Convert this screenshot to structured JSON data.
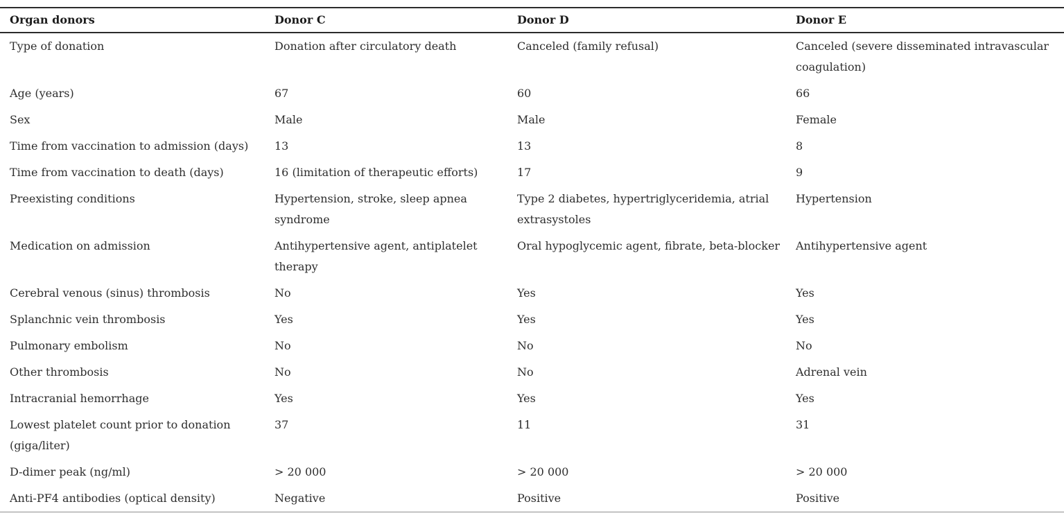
{
  "style": {
    "text_color": "#2e2e2e",
    "header_text_color": "#1c1c1c",
    "heavy_rule_color": "#2b2b2b",
    "light_rule_color": "#8f8f8f",
    "background_color": "#ffffff"
  },
  "table": {
    "columns": [
      "Organ donors",
      "Donor C",
      "Donor D",
      "Donor E"
    ],
    "rows": [
      {
        "label": "Type of donation",
        "values": [
          "Donation after circulatory death",
          "Canceled (family refusal)",
          "Canceled (severe disseminated intravascular coagulation)"
        ]
      },
      {
        "label": "Age (years)",
        "values": [
          "67",
          "60",
          "66"
        ]
      },
      {
        "label": "Sex",
        "values": [
          "Male",
          "Male",
          "Female"
        ]
      },
      {
        "label": "Time from vaccination to admission (days)",
        "values": [
          "13",
          "13",
          "8"
        ]
      },
      {
        "label": "Time from vaccination to death (days)",
        "values": [
          "16 (limitation of therapeutic efforts)",
          "17",
          "9"
        ]
      },
      {
        "label": "Preexisting conditions",
        "values": [
          "Hypertension, stroke, sleep apnea syndrome",
          "Type 2 diabetes, hypertriglyceridemia, atrial extrasystoles",
          "Hypertension"
        ]
      },
      {
        "label": "Medication on admission",
        "values": [
          "Antihypertensive agent, antiplatelet therapy",
          "Oral hypoglycemic agent, fibrate, beta-blocker",
          "Antihypertensive agent"
        ]
      },
      {
        "label": "Cerebral venous (sinus) thrombosis",
        "values": [
          "No",
          "Yes",
          "Yes"
        ]
      },
      {
        "label": "Splanchnic vein thrombosis",
        "values": [
          "Yes",
          "Yes",
          "Yes"
        ]
      },
      {
        "label": "Pulmonary embolism",
        "values": [
          "No",
          "No",
          "No"
        ]
      },
      {
        "label": "Other thrombosis",
        "values": [
          "No",
          "No",
          "Adrenal vein"
        ]
      },
      {
        "label": "Intracranial hemorrhage",
        "values": [
          "Yes",
          "Yes",
          "Yes"
        ]
      },
      {
        "label": "Lowest platelet count prior to donation (giga/liter)",
        "values": [
          "37",
          "11",
          "31"
        ]
      },
      {
        "label": "D-dimer peak (ng/ml)",
        "values": [
          "> 20 000",
          "> 20 000",
          "> 20 000"
        ]
      },
      {
        "label": "Anti-PF4 antibodies (optical density)",
        "values": [
          "Negative",
          "Positive",
          "Positive"
        ]
      }
    ]
  }
}
